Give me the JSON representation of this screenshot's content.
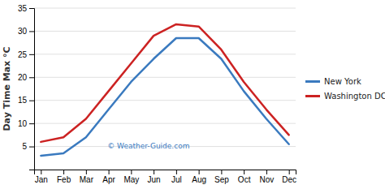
{
  "chart_data": {
    "type": "line",
    "ylabel": "Day Time Max °C",
    "annotations": [
      "© Weather-Guide.com"
    ],
    "categories": [
      "Jan",
      "Feb",
      "Mar",
      "Apr",
      "May",
      "Jun",
      "Jul",
      "Aug",
      "Sep",
      "Oct",
      "Nov",
      "Dec"
    ],
    "series": [
      {
        "name": "New York",
        "color": "#3a7abf",
        "values": [
          3,
          3.5,
          7,
          13,
          19,
          24,
          28.5,
          28.5,
          24,
          17,
          11,
          5.5
        ]
      },
      {
        "name": "Washington DC",
        "color": "#cc2222",
        "values": [
          6,
          7,
          11,
          17,
          23,
          29,
          31.5,
          31,
          26,
          19,
          13,
          7.5
        ]
      }
    ],
    "ylim": [
      0,
      35
    ],
    "yticks": [
      5,
      10,
      15,
      20,
      25,
      30,
      35
    ],
    "grid": true,
    "legend": "right"
  }
}
